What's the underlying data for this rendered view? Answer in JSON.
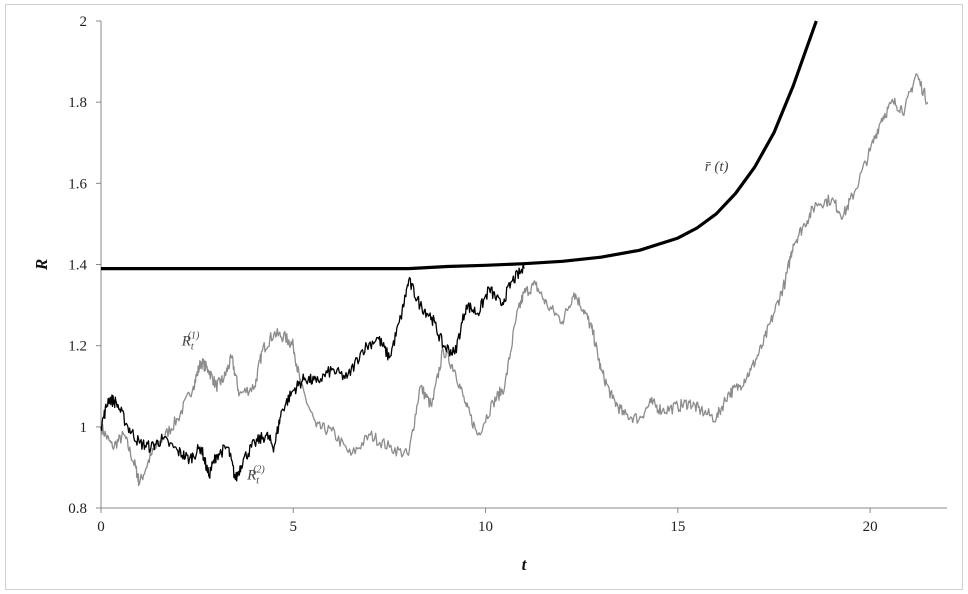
{
  "chart_data": {
    "type": "line",
    "title": "",
    "xlabel": "t",
    "ylabel": "R",
    "xlim": [
      0,
      22
    ],
    "ylim": [
      0.8,
      2
    ],
    "x_ticks": [
      "0",
      "5",
      "10",
      "15",
      "20"
    ],
    "y_ticks": [
      "0.8",
      "1",
      "1.2",
      "1.4",
      "1.6",
      "1.8",
      "2"
    ],
    "grid": false,
    "colors": {
      "boundary": "#000000",
      "path1": "#8c8c8c",
      "path2": "#000000"
    },
    "annotations": [
      {
        "text": "r̄ (t)",
        "base": "r̄ (t)",
        "sup": "",
        "series": "boundary",
        "x": 15.7,
        "y": 1.63
      },
      {
        "text": "R_t^(1)",
        "base": "R",
        "sub": "t",
        "sup": "(1)",
        "series": "path1",
        "x": 2.1,
        "y": 1.2
      },
      {
        "text": "R_t^(2)",
        "base": "R",
        "sub": "t",
        "sup": "(2)",
        "series": "path2",
        "x": 3.8,
        "y": 0.87
      }
    ],
    "series": [
      {
        "id": "boundary",
        "x": [
          0,
          2,
          4,
          6,
          8,
          9,
          10,
          11,
          12,
          13,
          14,
          15,
          15.5,
          16,
          16.5,
          17,
          17.5,
          18,
          18.3,
          18.6
        ],
        "y": [
          1.39,
          1.39,
          1.39,
          1.39,
          1.39,
          1.395,
          1.398,
          1.402,
          1.408,
          1.418,
          1.435,
          1.465,
          1.49,
          1.525,
          1.575,
          1.64,
          1.725,
          1.84,
          1.92,
          2.0
        ]
      },
      {
        "id": "path1",
        "x": [
          0,
          0.3,
          0.6,
          0.9,
          1.0,
          1.3,
          1.6,
          2.0,
          2.4,
          2.6,
          2.8,
          3.0,
          3.2,
          3.4,
          3.6,
          4.0,
          4.2,
          4.5,
          4.8,
          5.0,
          5.2,
          5.6,
          6.0,
          6.5,
          7.0,
          7.5,
          8.0,
          8.3,
          8.6,
          8.9,
          9.2,
          9.5,
          9.8,
          10.2,
          10.5,
          10.8,
          11.0,
          11.3,
          11.6,
          12.0,
          12.3,
          12.6,
          12.8,
          13.0,
          13.3,
          13.6,
          14.0,
          14.3,
          14.6,
          15.0,
          15.3,
          15.6,
          16.0,
          16.3,
          16.6,
          16.9,
          17.2,
          17.5,
          17.8,
          18.0,
          18.3,
          18.6,
          19.0,
          19.3,
          19.6,
          20.0,
          20.3,
          20.6,
          20.9,
          21.2,
          21.5
        ],
        "y": [
          1.0,
          0.95,
          0.98,
          0.9,
          0.86,
          0.93,
          0.97,
          1.02,
          1.1,
          1.16,
          1.14,
          1.1,
          1.12,
          1.17,
          1.08,
          1.1,
          1.19,
          1.23,
          1.22,
          1.2,
          1.1,
          1.0,
          0.99,
          0.93,
          0.98,
          0.95,
          0.93,
          1.1,
          1.05,
          1.19,
          1.14,
          1.05,
          0.98,
          1.06,
          1.1,
          1.27,
          1.33,
          1.35,
          1.3,
          1.26,
          1.33,
          1.28,
          1.23,
          1.14,
          1.07,
          1.03,
          1.02,
          1.06,
          1.04,
          1.05,
          1.06,
          1.04,
          1.02,
          1.08,
          1.1,
          1.14,
          1.2,
          1.28,
          1.36,
          1.45,
          1.5,
          1.55,
          1.56,
          1.52,
          1.58,
          1.68,
          1.76,
          1.8,
          1.78,
          1.87,
          1.8
        ]
      },
      {
        "id": "path2",
        "x": [
          0,
          0.2,
          0.4,
          0.7,
          1.0,
          1.3,
          1.6,
          2.0,
          2.3,
          2.6,
          2.8,
          3.0,
          3.3,
          3.5,
          3.7,
          4.0,
          4.3,
          4.5,
          4.7,
          5.0,
          5.3,
          5.6,
          6.0,
          6.4,
          6.8,
          7.2,
          7.5,
          7.8,
          8.0,
          8.3,
          8.6,
          8.9,
          9.2,
          9.5,
          9.8,
          10.1,
          10.4,
          10.7,
          11.0
        ],
        "y": [
          1.0,
          1.07,
          1.06,
          1.0,
          0.96,
          0.95,
          0.97,
          0.94,
          0.92,
          0.95,
          0.88,
          0.93,
          0.95,
          0.87,
          0.92,
          0.96,
          0.98,
          0.95,
          1.04,
          1.09,
          1.12,
          1.11,
          1.14,
          1.12,
          1.19,
          1.22,
          1.17,
          1.27,
          1.36,
          1.3,
          1.27,
          1.2,
          1.18,
          1.3,
          1.28,
          1.34,
          1.3,
          1.36,
          1.39
        ]
      }
    ]
  }
}
